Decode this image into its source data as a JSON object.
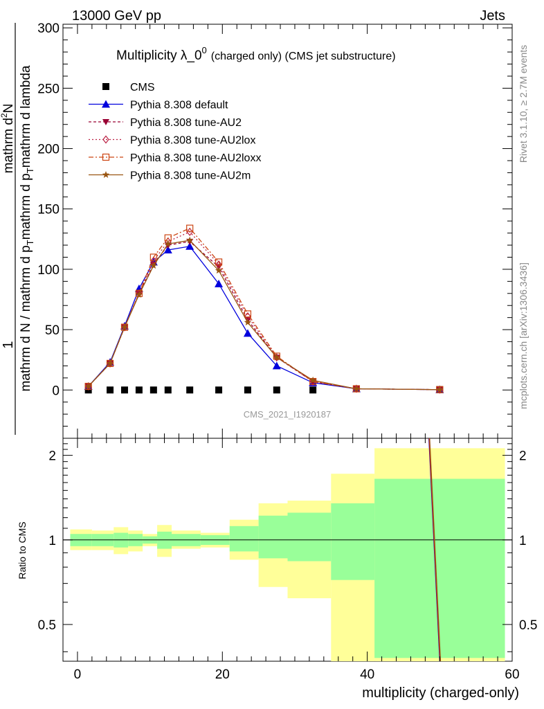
{
  "header": {
    "left": "13000 GeV pp",
    "right": "Jets"
  },
  "side_text": {
    "rivet": "Rivet 3.1.10, ≥ 2.7M events",
    "mcplots": "mcplots.cern.ch [arXiv:1306.3436]"
  },
  "chart_data": {
    "type": "line",
    "title": "Multiplicity λ_0",
    "title_sup": "0",
    "title_suffix": "(charged only) (CMS jet substructure)",
    "watermark": "CMS_2021_I1920187",
    "xlabel": "multiplicity (charged-only)",
    "xlim": [
      -2,
      60
    ],
    "x_ticks": [
      0,
      20,
      40,
      60
    ],
    "main": {
      "ylim": [
        -40,
        303
      ],
      "y_ticks": [
        0,
        50,
        100,
        150,
        200,
        250,
        300
      ],
      "ylabel": {
        "numerator": "1",
        "denominator": "mathrm d N / mathrm d p",
        "denominator_sub": "T",
        "denominator_rest": "mathrm d p",
        "denominator_sub2": "T",
        "denominator_tail": "mathrm d lambda",
        "right_numerator": "mathrm d",
        "right_sup": "2",
        "right_numerator_tail": "N"
      }
    },
    "ratio": {
      "ylabel": "Ratio to CMS",
      "y_ticks": [
        0.5,
        1,
        2
      ],
      "y_tick_labels": [
        "0.5",
        "1",
        "2"
      ],
      "ylim": [
        0.37,
        2.3
      ],
      "scale": "log"
    },
    "bins": [
      [
        -1,
        2
      ],
      [
        2,
        5
      ],
      [
        5,
        7
      ],
      [
        7,
        9
      ],
      [
        9,
        11
      ],
      [
        11,
        13
      ],
      [
        13,
        17
      ],
      [
        17,
        21
      ],
      [
        21,
        25
      ],
      [
        25,
        29
      ],
      [
        29,
        35
      ],
      [
        35,
        41
      ],
      [
        41,
        59
      ]
    ],
    "x": [
      1.5,
      4.5,
      6.5,
      8.5,
      10.5,
      12.5,
      15.5,
      19.5,
      23.5,
      27.5,
      32.5,
      38.5,
      50.0
    ],
    "cms_values": [
      0,
      0,
      0,
      0,
      0,
      0,
      0,
      0,
      0,
      0,
      0,
      1,
      0.3
    ],
    "ratio_band": {
      "green_low": [
        0.95,
        0.95,
        0.94,
        0.95,
        0.97,
        0.93,
        0.95,
        0.96,
        0.91,
        0.86,
        0.84,
        0.72,
        0.38
      ],
      "green_high": [
        1.05,
        1.05,
        1.06,
        1.05,
        1.03,
        1.07,
        1.05,
        1.04,
        1.12,
        1.22,
        1.25,
        1.35,
        1.65
      ],
      "yellow_low": [
        0.92,
        0.92,
        0.89,
        0.91,
        0.95,
        0.87,
        0.93,
        0.94,
        0.85,
        0.68,
        0.62,
        0.37,
        0.37
      ],
      "yellow_high": [
        1.09,
        1.08,
        1.11,
        1.08,
        1.05,
        1.13,
        1.08,
        1.06,
        1.18,
        1.35,
        1.38,
        1.72,
        2.12
      ]
    },
    "legend_position": "top-left",
    "series": [
      {
        "name": "CMS",
        "color": "#000000",
        "marker": "square",
        "dash": "none",
        "values": [
          0,
          0,
          0,
          0,
          0,
          0,
          0,
          0,
          0,
          0,
          0,
          1,
          0.3
        ]
      },
      {
        "name": "Pythia 8.308 default",
        "color": "#0000dd",
        "marker": "triangle-up",
        "dash": "none",
        "values": [
          3,
          23,
          53,
          84,
          106,
          116,
          119,
          88,
          47,
          20,
          6,
          1,
          0.3
        ]
      },
      {
        "name": "Pythia 8.308 tune-AU2",
        "color": "#990033",
        "marker": "triangle-down",
        "dash": "4,3",
        "values": [
          3,
          22,
          52,
          80,
          104,
          120,
          123,
          102,
          58,
          27,
          7,
          1,
          0.3
        ]
      },
      {
        "name": "Pythia 8.308 tune-AU2lox",
        "color": "#bb2244",
        "marker": "diamond-open",
        "dash": "2,3",
        "values": [
          3,
          22,
          52,
          80,
          107,
          123,
          131,
          104,
          61,
          27,
          7,
          1,
          0.3
        ]
      },
      {
        "name": "Pythia 8.308 tune-AU2loxx",
        "color": "#cc4411",
        "marker": "square-open",
        "dash": "7,3,2,3",
        "values": [
          3,
          22,
          52,
          80,
          110,
          126,
          134,
          106,
          63,
          28,
          7,
          1,
          0.3
        ]
      },
      {
        "name": "Pythia 8.308 tune-AU2m",
        "color": "#995511",
        "marker": "star",
        "dash": "none",
        "values": [
          3,
          22,
          52,
          79,
          103,
          121,
          124,
          99,
          56,
          27,
          8,
          1,
          0.3
        ]
      }
    ],
    "ratio_line": {
      "x": [
        48.5,
        50.0
      ],
      "y": [
        2.3,
        0.37
      ]
    }
  }
}
